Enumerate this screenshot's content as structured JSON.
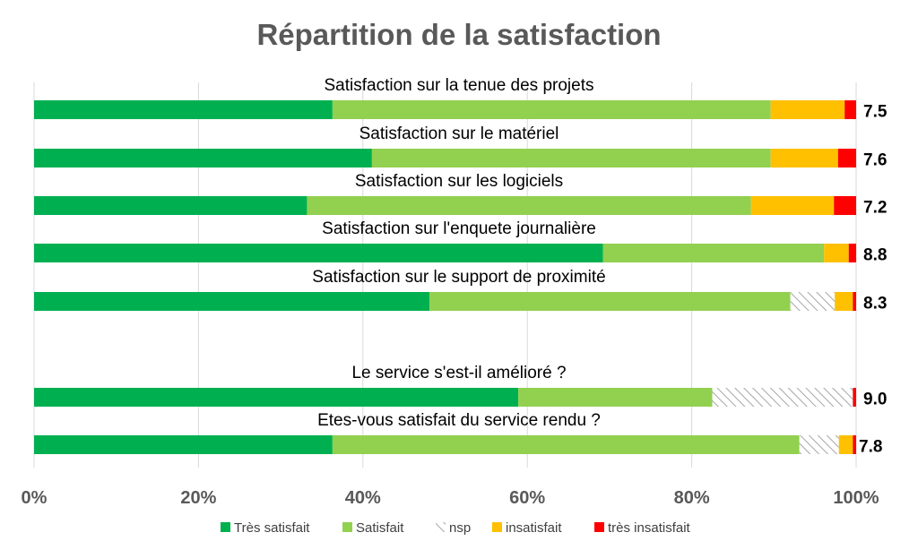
{
  "chart_data": {
    "type": "bar",
    "orientation": "horizontal",
    "stacked": true,
    "normalized": true,
    "title": "Répartition de la satisfaction",
    "xlim": [
      0,
      100
    ],
    "xticks": [
      "0%",
      "20%",
      "40%",
      "60%",
      "80%",
      "100%"
    ],
    "grid": true,
    "legend_position": "bottom",
    "categories": [
      "Satisfaction sur la tenue des projets",
      "Satisfaction sur le matériel",
      "Satisfaction sur les logiciels",
      "Satisfaction sur l'enquete journalière",
      "Satisfaction sur le support de proximité",
      "Le service s'est-il amélioré ?",
      "Etes-vous satisfait du service rendu ?"
    ],
    "scores": [
      "7.5",
      "7.6",
      "7.2",
      "8.8",
      "8.3",
      "9.0",
      "7.8"
    ],
    "score_highlight_index": 6,
    "series": [
      {
        "name": "Très satisfait",
        "color": "#00B050",
        "pattern": "solid",
        "values": [
          36.3,
          41.1,
          33.2,
          69.2,
          48.1,
          58.9,
          36.3
        ]
      },
      {
        "name": "Satisfait",
        "color": "#92D050",
        "pattern": "solid",
        "values": [
          53.3,
          48.5,
          54.0,
          26.9,
          43.9,
          23.6,
          56.8
        ]
      },
      {
        "name": "nsp",
        "color": "#A6A6A6",
        "pattern": "hatch",
        "values": [
          0,
          0,
          0,
          0,
          5.4,
          17.1,
          4.8
        ]
      },
      {
        "name": "insatisfait",
        "color": "#FFC000",
        "pattern": "solid",
        "values": [
          9.0,
          8.2,
          10.1,
          3.0,
          2.2,
          0,
          1.7
        ]
      },
      {
        "name": "très insatisfait",
        "color": "#FF0000",
        "pattern": "solid",
        "values": [
          1.4,
          2.2,
          2.7,
          0.9,
          0.4,
          0.4,
          0.4
        ]
      }
    ]
  },
  "colors": {
    "score_highlight": "#1FA3E0",
    "axis_text": "#595959",
    "grid": "#D9D9D9"
  }
}
